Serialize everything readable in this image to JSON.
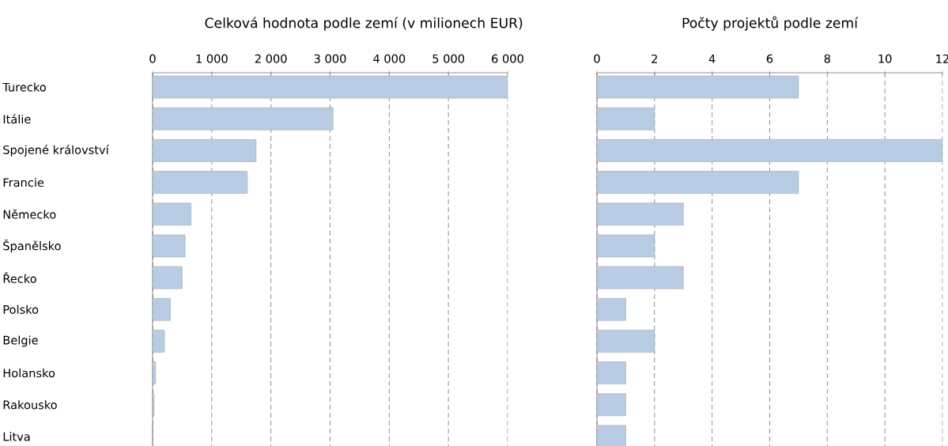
{
  "chart_data": [
    {
      "type": "bar",
      "orientation": "horizontal",
      "title": "Celková hodnota podle zemí (v milionech EUR)",
      "categories": [
        "Turecko",
        "Itálie",
        "Spojené království",
        "Francie",
        "Německo",
        "Španělsko",
        "Řecko",
        "Polsko",
        "Belgie",
        "Holansko",
        "Rakousko",
        "Litva"
      ],
      "values": [
        6000,
        3050,
        1750,
        1600,
        650,
        550,
        500,
        300,
        200,
        50,
        25,
        0
      ],
      "color": "#b8cce4",
      "xlim": [
        0,
        6000
      ],
      "xticks": [
        0,
        {
          "value": 1000,
          "label": "1 000"
        },
        {
          "value": 2000,
          "label": "2 000"
        },
        {
          "value": 3000,
          "label": "3 000"
        },
        {
          "value": 4000,
          "label": "4 000"
        },
        {
          "value": 5000,
          "label": "5 000"
        },
        {
          "value": 6000,
          "label": "6 000"
        }
      ],
      "grid": "x"
    },
    {
      "type": "bar",
      "orientation": "horizontal",
      "title": "Počty projektů podle zemí",
      "categories": [
        null,
        null,
        null,
        null,
        null,
        null,
        null,
        null,
        null,
        null,
        null,
        null
      ],
      "values": [
        7,
        2,
        12,
        7,
        3,
        2,
        3,
        1,
        2,
        1,
        1,
        1
      ],
      "color": "#b8cce4",
      "xlim": [
        0,
        12
      ],
      "xticks": [
        0,
        2,
        4,
        6,
        8,
        10,
        12
      ],
      "grid": "x",
      "tick_labels": "x"
    }
  ]
}
